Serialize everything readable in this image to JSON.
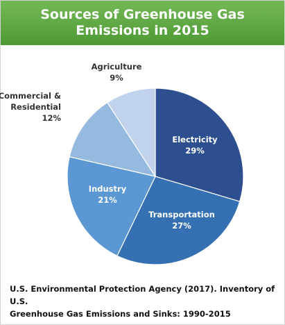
{
  "header": {
    "title_line1": "Sources of Greenhouse Gas",
    "title_line2": "Emissions in 2015"
  },
  "chart_data": {
    "type": "pie",
    "title": "Sources of Greenhouse Gas Emissions in 2015",
    "categories": [
      "Electricity",
      "Transportation",
      "Industry",
      "Commercial & Residential",
      "Agriculture"
    ],
    "values": [
      29,
      27,
      21,
      12,
      9
    ],
    "labels": [
      "29%",
      "27%",
      "21%",
      "12%",
      "9%"
    ],
    "colors": [
      "#2d4f8f",
      "#3570b3",
      "#5a97d3",
      "#96b9e0",
      "#c1d3ec"
    ]
  },
  "source": {
    "line1": "U.S. Environmental Protection Agency (2017). Inventory of U.S.",
    "line2": "Greenhouse Gas Emissions and Sinks: 1990-2015"
  }
}
